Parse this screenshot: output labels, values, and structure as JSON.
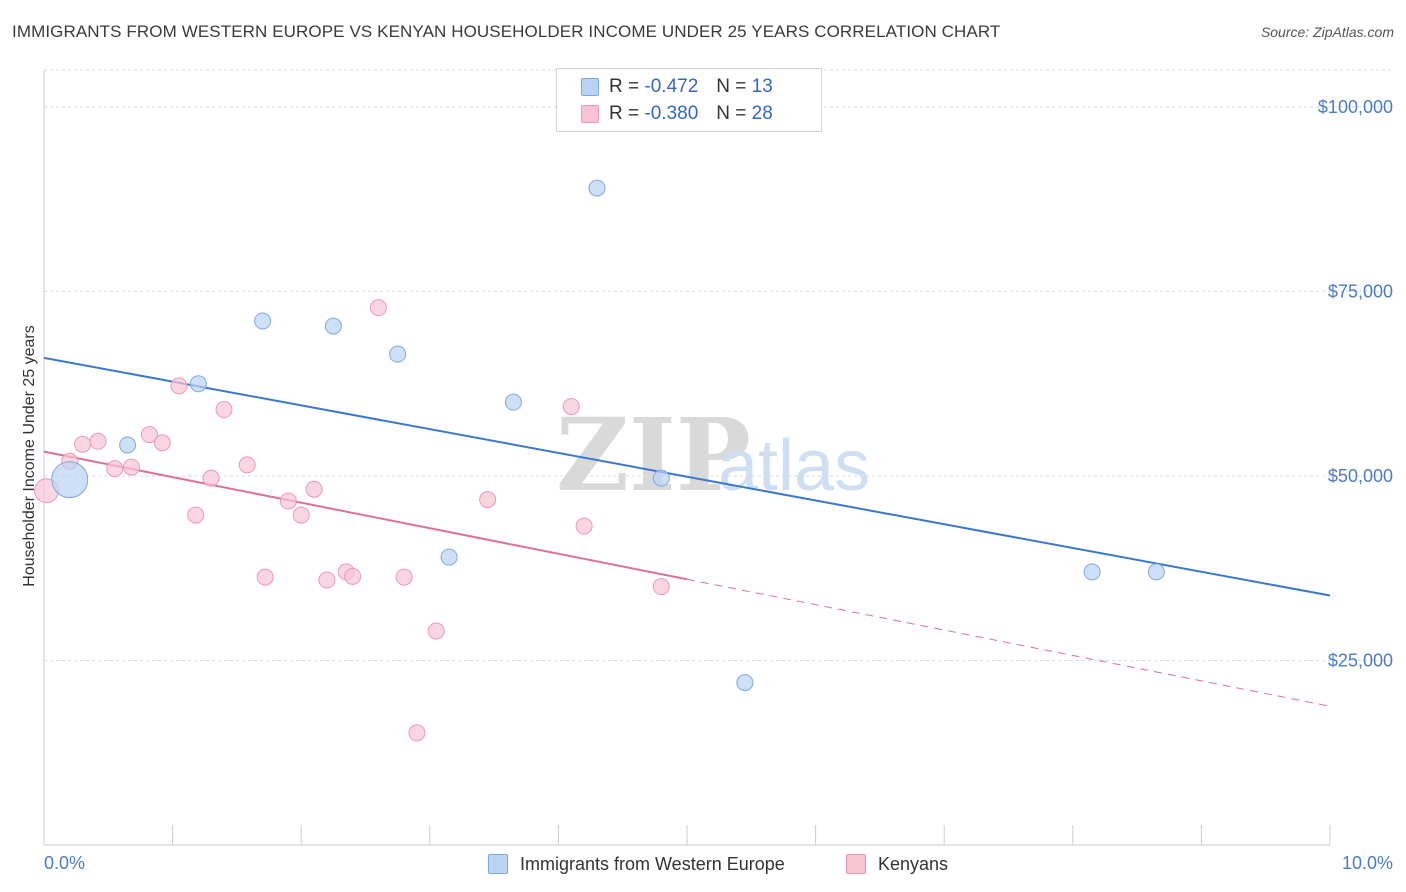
{
  "header": {
    "title": "IMMIGRANTS FROM WESTERN EUROPE VS KENYAN HOUSEHOLDER INCOME UNDER 25 YEARS CORRELATION CHART",
    "source": "Source: ZipAtlas.com"
  },
  "watermark": {
    "zip": "ZIP",
    "atlas": "atlas"
  },
  "legend": {
    "series1": {
      "r_label": "R =",
      "r_value": "-0.472",
      "n_label": "N =",
      "n_value": "13"
    },
    "series2": {
      "r_label": "R =",
      "r_value": "-0.380",
      "n_label": "N =",
      "n_value": "28"
    }
  },
  "colors": {
    "blue_fill": "#b9d3f3",
    "blue_stroke": "#7ea9e0",
    "blue_line": "#3a78d0",
    "pink_fill": "#f8c4d4",
    "pink_stroke": "#ee98b4",
    "pink_line": "#e0709a",
    "grid": "#d8d8d8",
    "tick_text": "#4a7cc9"
  },
  "chart_data": {
    "type": "scatter",
    "title": "IMMIGRANTS FROM WESTERN EUROPE VS KENYAN HOUSEHOLDER INCOME UNDER 25 YEARS CORRELATION CHART",
    "xlabel": "",
    "ylabel": "Householder Income Under 25 years",
    "xlim": [
      0,
      10
    ],
    "ylim": [
      0,
      105000
    ],
    "x_tick_labels": [
      "0.0%",
      "10.0%"
    ],
    "y_ticks": [
      25000,
      50000,
      75000,
      100000
    ],
    "y_tick_labels": [
      "$25,000",
      "$50,000",
      "$75,000",
      "$100,000"
    ],
    "grid": true,
    "legend_position": "top-center",
    "series": [
      {
        "name": "Immigrants from Western Europe",
        "color": "#b9d3f3",
        "points": [
          {
            "x": 0.2,
            "y": 49500,
            "size": "large"
          },
          {
            "x": 0.65,
            "y": 54200
          },
          {
            "x": 1.2,
            "y": 62500
          },
          {
            "x": 1.7,
            "y": 71000
          },
          {
            "x": 2.25,
            "y": 70300
          },
          {
            "x": 2.75,
            "y": 66500
          },
          {
            "x": 3.15,
            "y": 39000
          },
          {
            "x": 3.65,
            "y": 60000
          },
          {
            "x": 4.3,
            "y": 89000
          },
          {
            "x": 4.8,
            "y": 49700
          },
          {
            "x": 5.45,
            "y": 22000
          },
          {
            "x": 8.15,
            "y": 37000
          },
          {
            "x": 8.65,
            "y": 37000
          }
        ],
        "trend": {
          "x": [
            0,
            10
          ],
          "y": [
            66000,
            33800
          ],
          "style": "solid"
        }
      },
      {
        "name": "Kenyans",
        "color": "#f8c4d4",
        "points": [
          {
            "x": 0.02,
            "y": 48000,
            "size": "medium"
          },
          {
            "x": 0.2,
            "y": 52000
          },
          {
            "x": 0.3,
            "y": 54300
          },
          {
            "x": 0.42,
            "y": 54700
          },
          {
            "x": 0.55,
            "y": 51000
          },
          {
            "x": 0.68,
            "y": 51200
          },
          {
            "x": 0.82,
            "y": 55600
          },
          {
            "x": 0.92,
            "y": 54500
          },
          {
            "x": 1.05,
            "y": 62200
          },
          {
            "x": 1.18,
            "y": 44700
          },
          {
            "x": 1.3,
            "y": 49700
          },
          {
            "x": 1.4,
            "y": 59000
          },
          {
            "x": 1.58,
            "y": 51500
          },
          {
            "x": 1.72,
            "y": 36300
          },
          {
            "x": 1.9,
            "y": 46600
          },
          {
            "x": 2.0,
            "y": 44700
          },
          {
            "x": 2.1,
            "y": 48200
          },
          {
            "x": 2.2,
            "y": 35900
          },
          {
            "x": 2.35,
            "y": 37000
          },
          {
            "x": 2.4,
            "y": 36400
          },
          {
            "x": 2.6,
            "y": 72800
          },
          {
            "x": 2.8,
            "y": 36300
          },
          {
            "x": 2.9,
            "y": 15200
          },
          {
            "x": 3.05,
            "y": 29000
          },
          {
            "x": 3.45,
            "y": 46800
          },
          {
            "x": 4.1,
            "y": 59400
          },
          {
            "x": 4.2,
            "y": 43200
          },
          {
            "x": 4.8,
            "y": 35000
          }
        ],
        "trend": {
          "x": [
            0,
            5
          ],
          "y": [
            53300,
            36000
          ],
          "style": "solid"
        },
        "trend_extension": {
          "x": [
            5,
            10
          ],
          "y": [
            36000,
            18800
          ],
          "style": "dashed"
        }
      }
    ]
  }
}
